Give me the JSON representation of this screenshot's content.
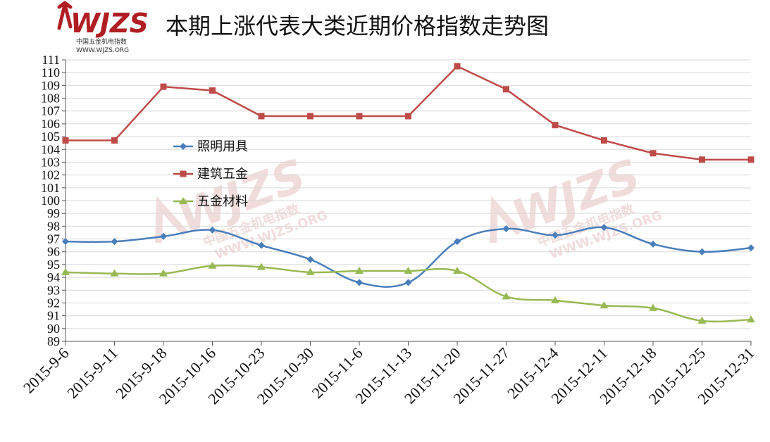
{
  "logo": {
    "brand": "WJZS",
    "cn": "中国五金机电指数",
    "url": "WWW.WJZS.ORG",
    "color": "#b01e23"
  },
  "chart_data": {
    "type": "line",
    "title": "本期上涨代表大类近期价格指数走势图",
    "xlabel": "",
    "ylabel": "",
    "ylim": [
      89,
      111
    ],
    "yticks": [
      89,
      90,
      91,
      92,
      93,
      94,
      95,
      96,
      97,
      98,
      99,
      100,
      101,
      102,
      103,
      104,
      105,
      106,
      107,
      108,
      109,
      110,
      111
    ],
    "grid": true,
    "legend_position": "left-middle",
    "categories": [
      "2015-9-6",
      "2015-9-11",
      "2015-9-18",
      "2015-10-16",
      "2015-10-23",
      "2015-10-30",
      "2015-11-6",
      "2015-11-13",
      "2015-11-20",
      "2015-11-27",
      "2015-12-4",
      "2015-12-11",
      "2015-12-18",
      "2015-12-25",
      "2015-12-31"
    ],
    "series": [
      {
        "name": "照明用具",
        "color": "#4a7ebb",
        "marker": "diamond",
        "smooth": true,
        "values": [
          96.8,
          96.8,
          97.2,
          97.7,
          96.5,
          95.4,
          93.6,
          93.6,
          96.8,
          97.8,
          97.3,
          97.9,
          96.6,
          96.0,
          96.3
        ]
      },
      {
        "name": "建筑五金",
        "color": "#be4b48",
        "marker": "square",
        "smooth": false,
        "values": [
          104.7,
          104.7,
          108.9,
          108.6,
          106.6,
          106.6,
          106.6,
          106.6,
          110.5,
          108.7,
          105.9,
          104.7,
          103.7,
          103.2,
          103.2
        ]
      },
      {
        "name": "五金材料",
        "color": "#98b954",
        "marker": "triangle",
        "smooth": true,
        "values": [
          94.4,
          94.3,
          94.3,
          94.9,
          94.8,
          94.4,
          94.5,
          94.5,
          94.5,
          92.5,
          92.2,
          91.8,
          91.6,
          90.6,
          90.7
        ]
      }
    ]
  }
}
